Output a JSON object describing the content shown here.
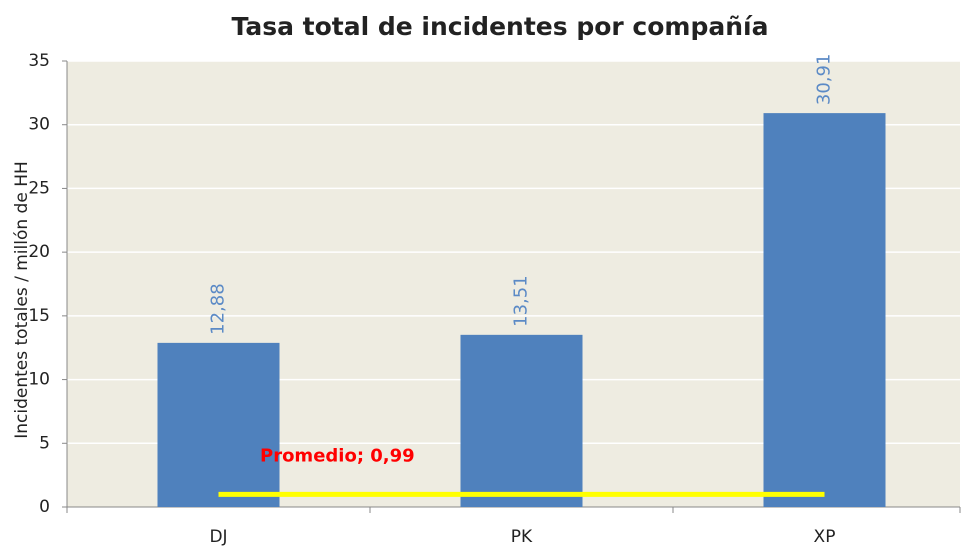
{
  "chart_data": {
    "type": "bar",
    "title": "Tasa total de incidentes por compañía",
    "y_label": "Incidentes totales / millón de HH",
    "categories": [
      "DJ",
      "PK",
      "XP"
    ],
    "values": [
      12.88,
      13.51,
      30.91
    ],
    "value_labels": [
      "12,88",
      "13,51",
      "30,91"
    ],
    "color": "#4f81bd",
    "label_color": "#5b8ac6",
    "ylim": [
      0,
      35
    ],
    "yticks": [
      0,
      5,
      10,
      15,
      20,
      25,
      30,
      35
    ],
    "grid": true,
    "reference_line": {
      "value": 0.99,
      "label": "Promedio; 0,99",
      "color": "#ffff00",
      "label_color": "#ff0000"
    }
  }
}
